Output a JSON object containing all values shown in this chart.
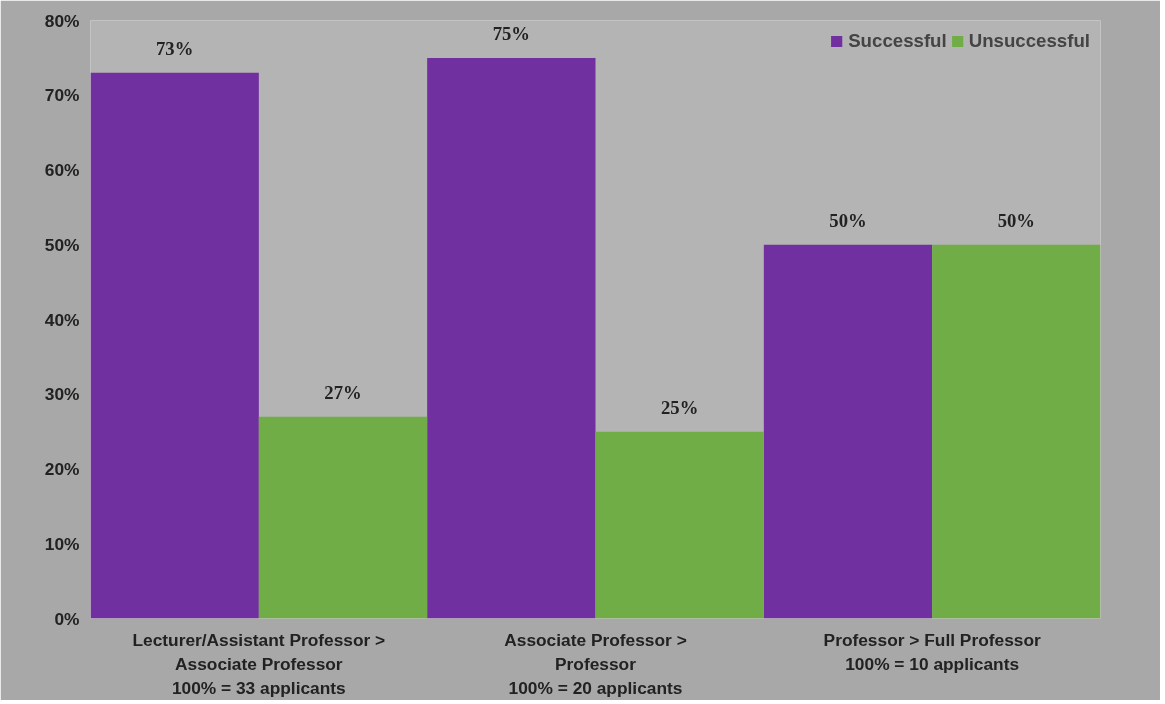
{
  "chart_data": {
    "type": "bar",
    "categories": [
      "Lecturer/Assistant Professor >\nAssociate Professor\n100% = 33 applicants",
      "Associate Professor >\nProfessor\n100% = 20 applicants",
      "Professor > Full Professor\n100% = 10 applicants"
    ],
    "series": [
      {
        "name": "Successful",
        "color": "#7030a0",
        "values": [
          73,
          75,
          50
        ],
        "value_labels": [
          "73%",
          "75%",
          "50%"
        ]
      },
      {
        "name": "Unsuccessful",
        "color": "#70ad47",
        "values": [
          27,
          25,
          50
        ],
        "value_labels": [
          "27%",
          "25%",
          "50%"
        ]
      }
    ],
    "ylim": [
      0,
      80
    ],
    "yticks": [
      {
        "value": 0,
        "label": "0%"
      },
      {
        "value": 10,
        "label": "10%"
      },
      {
        "value": 20,
        "label": "20%"
      },
      {
        "value": 30,
        "label": "30%"
      },
      {
        "value": 40,
        "label": "40%"
      },
      {
        "value": 50,
        "label": "50%"
      },
      {
        "value": 60,
        "label": "60%"
      },
      {
        "value": 70,
        "label": "70%"
      },
      {
        "value": 80,
        "label": "80%"
      }
    ],
    "legend": "top right",
    "grid": false
  }
}
